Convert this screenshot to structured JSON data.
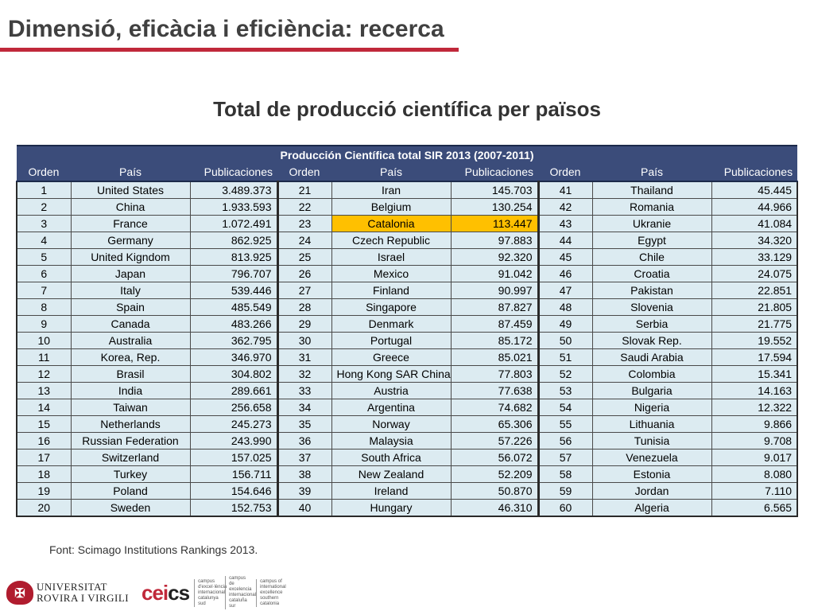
{
  "slide": {
    "title": "Dimensió, eficàcia i eficiència: recerca",
    "subtitle": "Total de producció científica per països",
    "source": "Font: Scimago Institutions Rankings 2013.",
    "accent_color": "#c0283a",
    "highlight_color": "#ffc000",
    "header_color": "#3b4c7a",
    "cell_color": "#dcebf1"
  },
  "table": {
    "caption": "Producción Científica total SIR 2013 (2007-2011)",
    "columns": [
      "Orden",
      "País",
      "Publicaciones",
      "Orden",
      "País",
      "Publicaciones",
      "Orden",
      "País",
      "Publicaciones"
    ],
    "rows": [
      [
        "1",
        "United States",
        "3.489.373",
        "21",
        "Iran",
        "145.703",
        "41",
        "Thailand",
        "45.445"
      ],
      [
        "2",
        "China",
        "1.933.593",
        "22",
        "Belgium",
        "130.254",
        "42",
        "Romania",
        "44.966"
      ],
      [
        "3",
        "France",
        "1.072.491",
        "23",
        "Catalonia",
        "113.447",
        "43",
        "Ukranie",
        "41.084"
      ],
      [
        "4",
        "Germany",
        "862.925",
        "24",
        "Czech Republic",
        "97.883",
        "44",
        "Egypt",
        "34.320"
      ],
      [
        "5",
        "United Kigndom",
        "813.925",
        "25",
        "Israel",
        "92.320",
        "45",
        "Chile",
        "33.129"
      ],
      [
        "6",
        "Japan",
        "796.707",
        "26",
        "Mexico",
        "91.042",
        "46",
        "Croatia",
        "24.075"
      ],
      [
        "7",
        "Italy",
        "539.446",
        "27",
        "Finland",
        "90.997",
        "47",
        "Pakistan",
        "22.851"
      ],
      [
        "8",
        "Spain",
        "485.549",
        "28",
        "Singapore",
        "87.827",
        "48",
        "Slovenia",
        "21.805"
      ],
      [
        "9",
        "Canada",
        "483.266",
        "29",
        "Denmark",
        "87.459",
        "49",
        "Serbia",
        "21.775"
      ],
      [
        "10",
        "Australia",
        "362.795",
        "30",
        "Portugal",
        "85.172",
        "50",
        "Slovak Rep.",
        "19.552"
      ],
      [
        "11",
        "Korea, Rep.",
        "346.970",
        "31",
        "Greece",
        "85.021",
        "51",
        "Saudi Arabia",
        "17.594"
      ],
      [
        "12",
        "Brasil",
        "304.802",
        "32",
        "Hong Kong SAR China",
        "77.803",
        "52",
        "Colombia",
        "15.341"
      ],
      [
        "13",
        "India",
        "289.661",
        "33",
        "Austria",
        "77.638",
        "53",
        "Bulgaria",
        "14.163"
      ],
      [
        "14",
        "Taiwan",
        "256.658",
        "34",
        "Argentina",
        "74.682",
        "54",
        "Nigeria",
        "12.322"
      ],
      [
        "15",
        "Netherlands",
        "245.273",
        "35",
        "Norway",
        "65.306",
        "55",
        "Lithuania",
        "9.866"
      ],
      [
        "16",
        "Russian Federation",
        "243.990",
        "36",
        "Malaysia",
        "57.226",
        "56",
        "Tunisia",
        "9.708"
      ],
      [
        "17",
        "Switzerland",
        "157.025",
        "37",
        "South Africa",
        "56.072",
        "57",
        "Venezuela",
        "9.017"
      ],
      [
        "18",
        "Turkey",
        "156.711",
        "38",
        "New Zealand",
        "52.209",
        "58",
        "Estonia",
        "8.080"
      ],
      [
        "19",
        "Poland",
        "154.646",
        "39",
        "Ireland",
        "50.870",
        "59",
        "Jordan",
        "7.110"
      ],
      [
        "20",
        "Sweden",
        "152.753",
        "40",
        "Hungary",
        "46.310",
        "60",
        "Algeria",
        "6.565"
      ]
    ],
    "highlighted_row_label": "Catalonia"
  },
  "footer": {
    "urv_line1": "UNIVERSITAT",
    "urv_line2": "ROVIRA I VIRGILI",
    "cei_mark": "cei",
    "cei_suffix": "cs",
    "cei_col1": "campus d'excel·lència internacional catalunya sud",
    "cei_col2": "campus de excelencia internacional cataluña sur",
    "cei_col3": "campus of international excellence southern catalonia"
  }
}
